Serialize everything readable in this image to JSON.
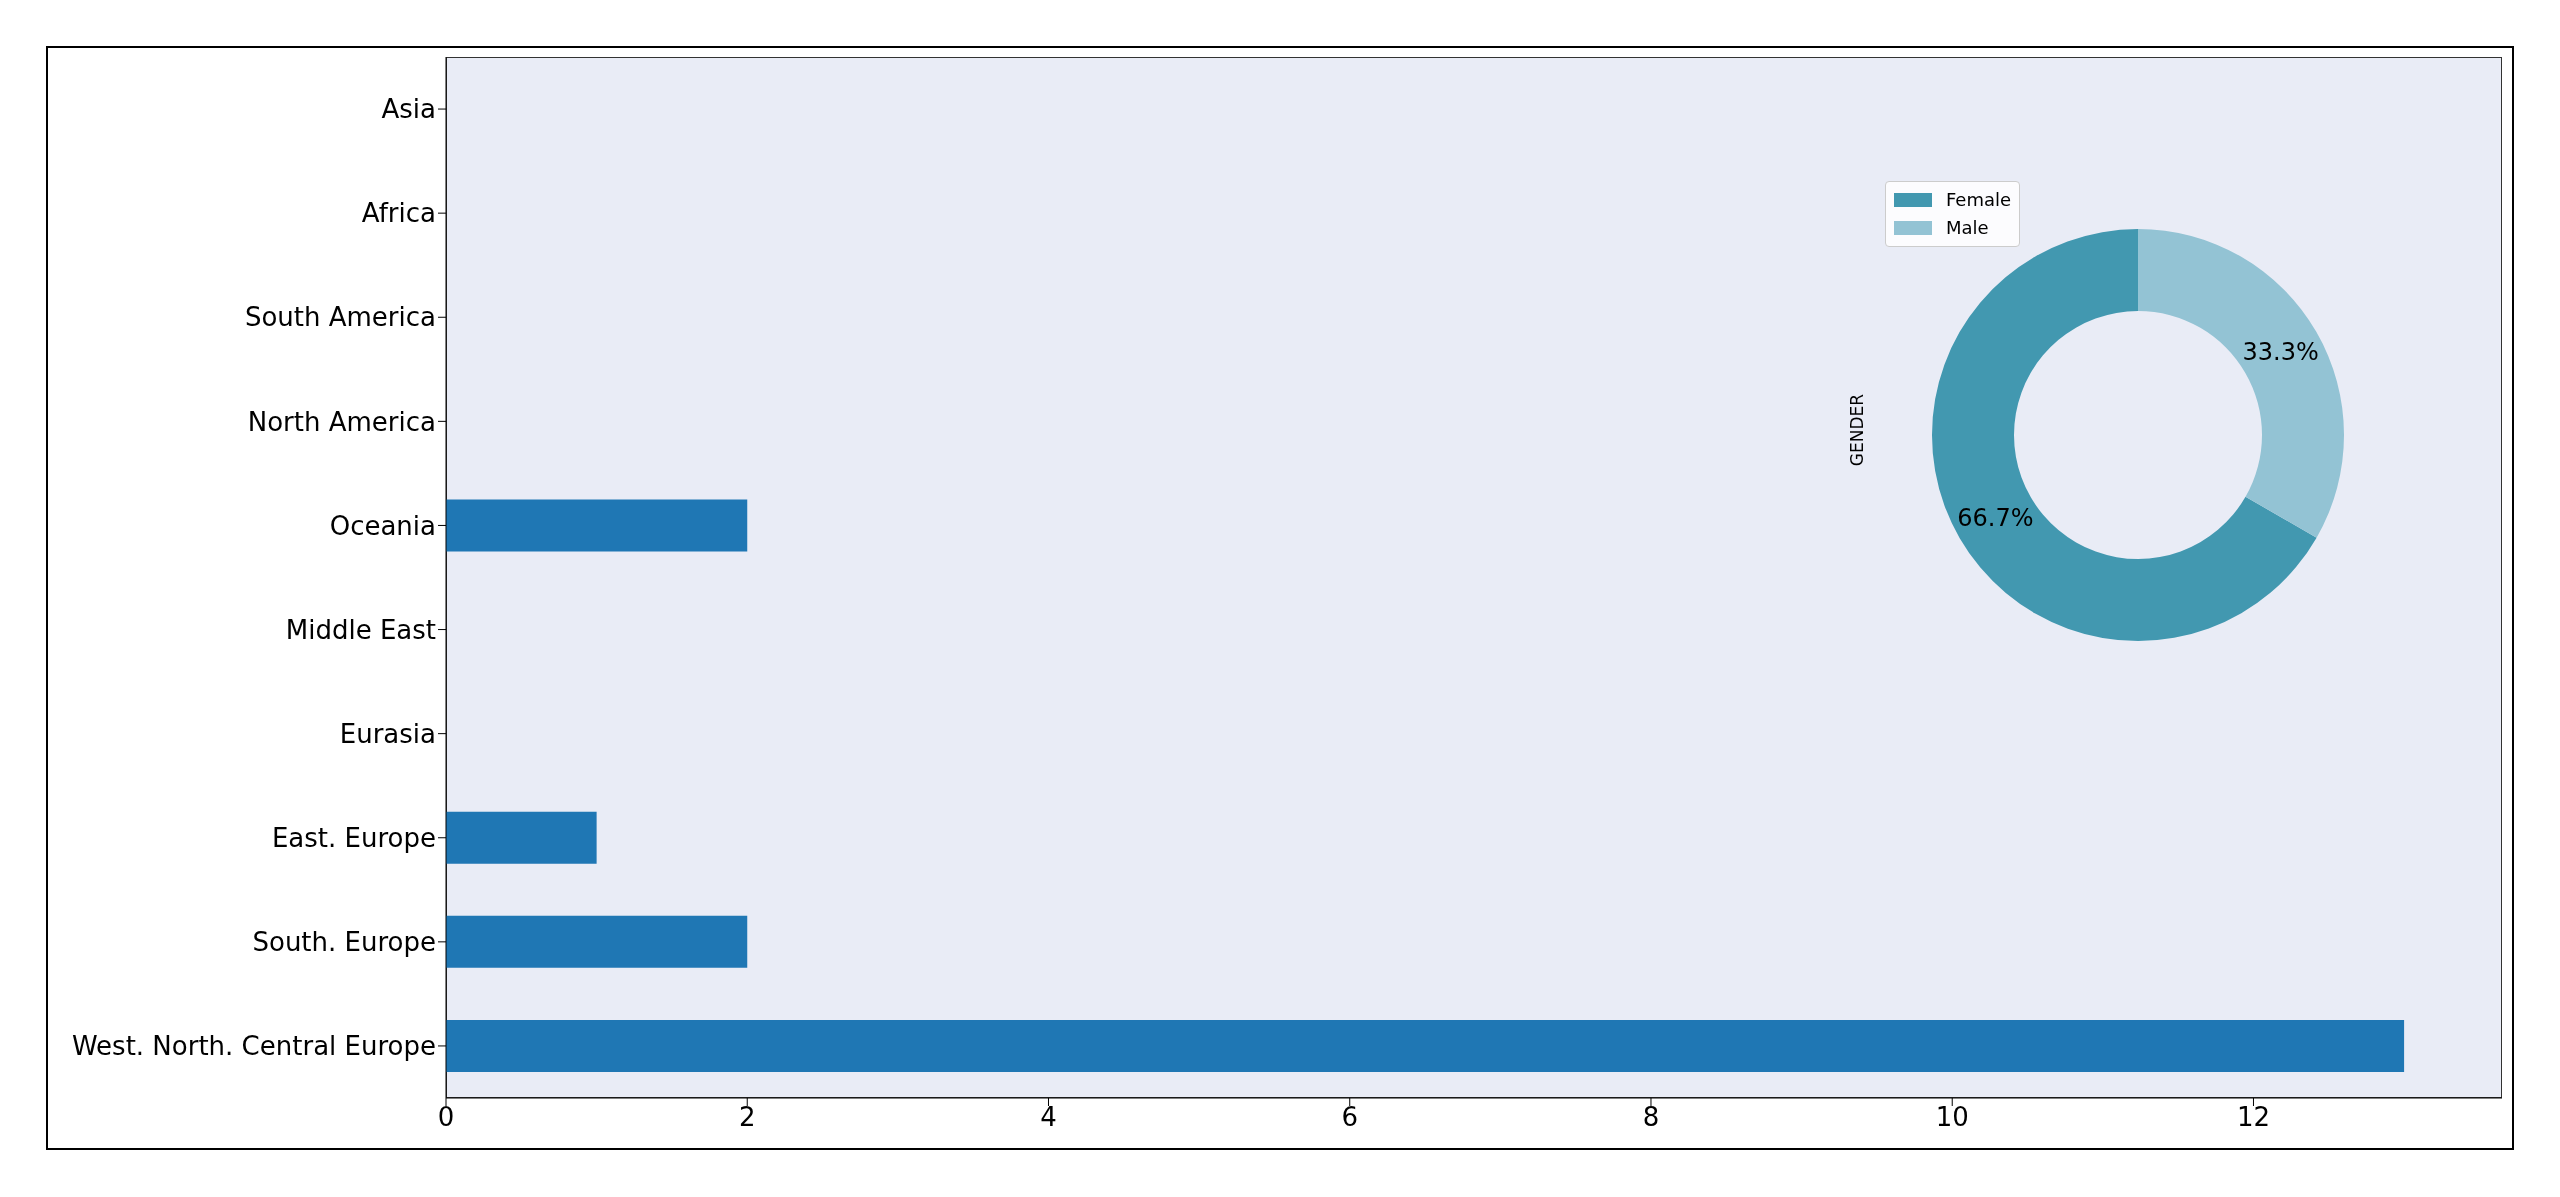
{
  "chart_data": [
    {
      "type": "bar",
      "orientation": "horizontal",
      "categories": [
        "Asia",
        "Africa",
        "South America",
        "North America",
        "Oceania",
        "Middle East",
        "Eurasia",
        "East. Europe",
        "South. Europe",
        "West. North. Central Europe"
      ],
      "values": [
        0,
        0,
        0,
        0,
        2,
        0,
        0,
        1,
        2,
        13
      ],
      "color": "#1f77b4",
      "xlim": [
        0,
        13.65
      ],
      "xticks": [
        0,
        2,
        4,
        6,
        8,
        10,
        12
      ]
    },
    {
      "type": "donut",
      "categories": [
        "Female",
        "Male"
      ],
      "values": [
        66.7,
        33.3
      ],
      "colors": [
        "#4298b0",
        "#93c3d4"
      ],
      "value_labels": [
        "66.7%",
        "33.3%"
      ],
      "ylabel": "GENDER",
      "legend": "top left"
    }
  ]
}
